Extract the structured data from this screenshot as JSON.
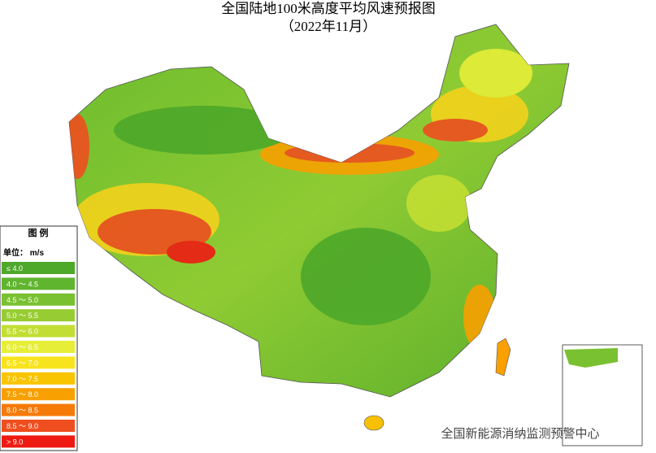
{
  "header": {
    "title": "全国陆地100米高度平均风速预报图",
    "subtitle": "（2022年11月）"
  },
  "legend": {
    "title": "图  例",
    "unit": "单位：  m/s",
    "items": [
      {
        "label": "≤ 4.0",
        "color": "#4ea82a"
      },
      {
        "label": "4.0 ～ 4.5",
        "color": "#5fb52e"
      },
      {
        "label": "4.5 ～ 5.0",
        "color": "#79c130"
      },
      {
        "label": "5.0 ～ 5.5",
        "color": "#97cd32"
      },
      {
        "label": "5.5 ～ 6.0",
        "color": "#c2de34"
      },
      {
        "label": "6.0 ～ 6.5",
        "color": "#e6ee38"
      },
      {
        "label": "6.5 ～ 7.0",
        "color": "#f8e41e"
      },
      {
        "label": "7.0 ～ 7.5",
        "color": "#f9c400"
      },
      {
        "label": "7.5 ～ 8.0",
        "color": "#f8a000"
      },
      {
        "label": "8.0 ～ 8.5",
        "color": "#f67a08"
      },
      {
        "label": "8.5 ～ 9.0",
        "color": "#ef4e1e"
      },
      {
        "label": "> 9.0",
        "color": "#ee1a12"
      }
    ]
  },
  "watermark": "全国新能源消纳监测预警中心"
}
